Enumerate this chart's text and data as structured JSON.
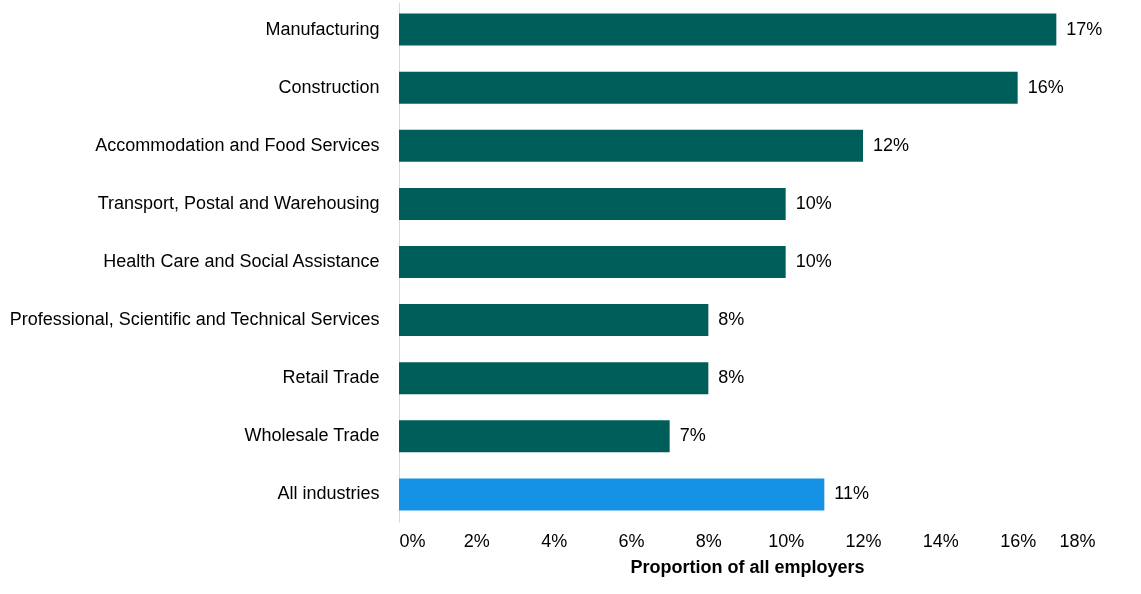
{
  "chart_data": {
    "type": "bar",
    "orientation": "horizontal",
    "xlabel": "Proportion of all employers",
    "categories": [
      "Manufacturing",
      "Construction",
      "Accommodation and Food Services",
      "Transport, Postal and Warehousing",
      "Health Care and Social Assistance",
      "Professional, Scientific and Technical Services",
      "Retail Trade",
      "Wholesale Trade",
      "All industries"
    ],
    "values": [
      17,
      16,
      12,
      10,
      10,
      8,
      8,
      7,
      11
    ],
    "colors": [
      "#005e5a",
      "#005e5a",
      "#005e5a",
      "#005e5a",
      "#005e5a",
      "#005e5a",
      "#005e5a",
      "#005e5a",
      "#1591e6"
    ],
    "value_labels": [
      "17%",
      "16%",
      "12%",
      "10%",
      "10%",
      "8%",
      "8%",
      "7%",
      "11%"
    ],
    "xlim": [
      0,
      18
    ],
    "xticks": [
      {
        "value": 0,
        "label": "0%"
      },
      {
        "value": 2,
        "label": "2%"
      },
      {
        "value": 4,
        "label": "4%"
      },
      {
        "value": 6,
        "label": "6%"
      },
      {
        "value": 8,
        "label": "8%"
      },
      {
        "value": 10,
        "label": "10%"
      },
      {
        "value": 12,
        "label": "12%"
      },
      {
        "value": 14,
        "label": "14%"
      },
      {
        "value": 16,
        "label": "16%"
      },
      {
        "value": 18,
        "label": "18%"
      }
    ],
    "grid": false
  }
}
